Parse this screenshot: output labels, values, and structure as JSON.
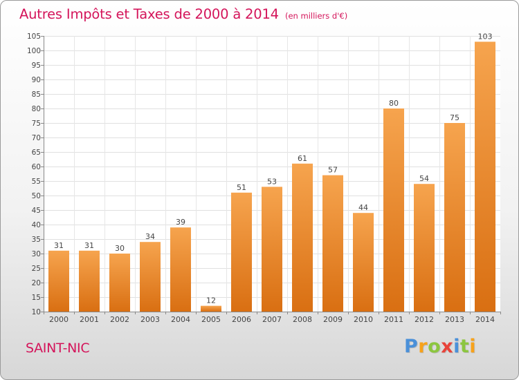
{
  "title": "Autres Impôts et Taxes de 2000 à 2014",
  "subtitle": "(en milliers d'€)",
  "commune": "SAINT-NIC",
  "brand": {
    "letters": [
      "P",
      "r",
      "o",
      "x",
      "i",
      "t",
      "i"
    ],
    "colors": [
      "#4a90d9",
      "#f7a21b",
      "#8cc63f",
      "#e8433a",
      "#4a90d9",
      "#8cc63f",
      "#f7a21b"
    ]
  },
  "colors": {
    "bar_light": "#f6a44e",
    "bar_dark": "#d96f12",
    "accent": "#d4145a"
  },
  "chart_data": {
    "type": "bar",
    "title": "Autres Impôts et Taxes de 2000 à 2014",
    "subtitle": "(en milliers d'€)",
    "categories": [
      "2000",
      "2001",
      "2002",
      "2003",
      "2004",
      "2005",
      "2006",
      "2007",
      "2008",
      "2009",
      "2010",
      "2011",
      "2012",
      "2013",
      "2014"
    ],
    "values": [
      31,
      31,
      30,
      34,
      39,
      12,
      51,
      53,
      61,
      57,
      44,
      80,
      54,
      75,
      103
    ],
    "ylim": [
      10,
      105
    ],
    "yticks": [
      10,
      15,
      20,
      25,
      30,
      35,
      40,
      45,
      50,
      55,
      60,
      65,
      70,
      75,
      80,
      85,
      90,
      95,
      100,
      105
    ],
    "grid": true,
    "data_labels": true
  }
}
